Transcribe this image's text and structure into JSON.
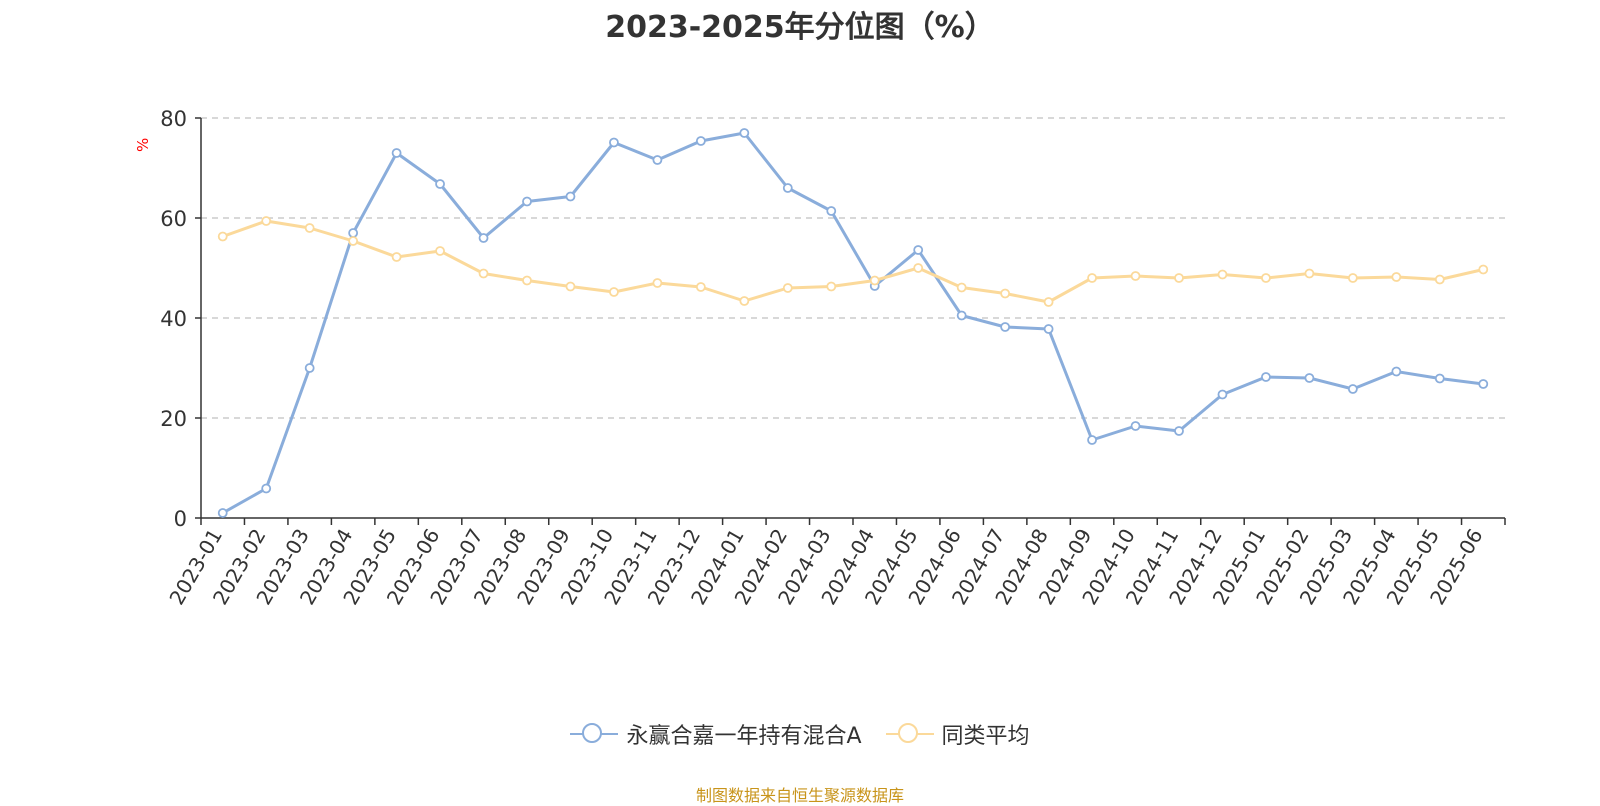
{
  "chart_data": {
    "type": "line",
    "title": "2023-2025年分位图（%）",
    "ylabel": "%",
    "xlabel": "",
    "ylim": [
      0,
      80
    ],
    "yticks": [
      0,
      20,
      40,
      60,
      80
    ],
    "grid": true,
    "legend_position": "bottom",
    "categories": [
      "2023-01",
      "2023-02",
      "2023-03",
      "2023-04",
      "2023-05",
      "2023-06",
      "2023-07",
      "2023-08",
      "2023-09",
      "2023-10",
      "2023-11",
      "2023-12",
      "2024-01",
      "2024-02",
      "2024-03",
      "2024-04",
      "2024-05",
      "2024-06",
      "2024-07",
      "2024-08",
      "2024-09",
      "2024-10",
      "2024-11",
      "2024-12",
      "2025-01",
      "2025-02",
      "2025-03",
      "2025-04",
      "2025-05",
      "2025-06"
    ],
    "series": [
      {
        "name": "永赢合嘉一年持有混合A",
        "color": "#8aaddb",
        "values": [
          1.0,
          5.9,
          30.0,
          57.0,
          73.0,
          66.8,
          56.0,
          63.3,
          64.3,
          75.1,
          71.6,
          75.4,
          77.0,
          66.0,
          61.4,
          46.4,
          53.6,
          40.5,
          38.2,
          37.8,
          15.6,
          18.4,
          17.4,
          24.7,
          28.2,
          28.0,
          25.8,
          29.3,
          27.9,
          26.8
        ]
      },
      {
        "name": "同类平均",
        "color": "#fbd99a",
        "values": [
          56.3,
          59.4,
          58.0,
          55.4,
          52.2,
          53.4,
          48.9,
          47.5,
          46.3,
          45.2,
          47.0,
          46.2,
          43.4,
          46.0,
          46.3,
          47.5,
          50.0,
          46.1,
          44.9,
          43.2,
          48.0,
          48.4,
          48.0,
          48.7,
          48.0,
          48.9,
          48.0,
          48.2,
          47.7,
          49.7
        ]
      }
    ]
  },
  "source": "制图数据来自恒生聚源数据库"
}
